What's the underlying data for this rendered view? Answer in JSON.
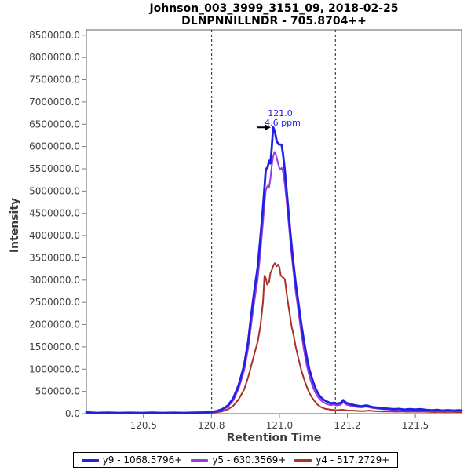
{
  "header": {
    "title_line1": "Johnson_003_3999_3151_09, 2018-02-25",
    "title_line2": "DLNPNNILLNDR - 705.8704++"
  },
  "axes": {
    "x": {
      "title": "Retention Time"
    },
    "y": {
      "title": "Intensity"
    }
  },
  "chart_data": {
    "type": "line",
    "title": "Johnson_003_3999_3151_09, 2018-02-25 / DLNPNNILLNDR - 705.8704++",
    "xlabel": "Retention Time",
    "ylabel": "Intensity",
    "xlim": [
      120.29,
      121.67
    ],
    "ylim": [
      0,
      8620000
    ],
    "grid": false,
    "legend_position": "bottom-center",
    "x_ticks": [
      {
        "v": 120.5,
        "label": "120.5"
      },
      {
        "v": 120.75,
        "label": "120.8"
      },
      {
        "v": 121.0,
        "label": "121.0"
      },
      {
        "v": 121.25,
        "label": "121.2"
      },
      {
        "v": 121.5,
        "label": "121.5"
      }
    ],
    "y_ticks": [
      {
        "v": 0,
        "label": "0.0"
      },
      {
        "v": 500000,
        "label": "500000.0"
      },
      {
        "v": 1000000,
        "label": "1000000.0"
      },
      {
        "v": 1500000,
        "label": "1500000.0"
      },
      {
        "v": 2000000,
        "label": "2000000.0"
      },
      {
        "v": 2500000,
        "label": "2500000.0"
      },
      {
        "v": 3000000,
        "label": "3000000.0"
      },
      {
        "v": 3500000,
        "label": "3500000.0"
      },
      {
        "v": 4000000,
        "label": "4000000.0"
      },
      {
        "v": 4500000,
        "label": "4500000.0"
      },
      {
        "v": 5000000,
        "label": "5000000.0"
      },
      {
        "v": 5500000,
        "label": "5500000.0"
      },
      {
        "v": 6000000,
        "label": "6000000.0"
      },
      {
        "v": 6500000,
        "label": "6500000.0"
      },
      {
        "v": 7000000,
        "label": "7000000.0"
      },
      {
        "v": 7500000,
        "label": "7500000.0"
      },
      {
        "v": 8000000,
        "label": "8000000.0"
      },
      {
        "v": 8500000,
        "label": "8500000.0"
      }
    ],
    "boundaries": [
      120.751,
      121.206
    ],
    "annotation": {
      "rt_label": "121.0",
      "ppm_label": "4.6 ppm",
      "rt": 120.977,
      "intensity": 6430000,
      "color": "#2222E0"
    },
    "series": [
      {
        "id": "y9",
        "name": "y9 - 1068.5796+",
        "color": "#2121E3",
        "width": 2.8,
        "points": [
          [
            120.29,
            30000
          ],
          [
            120.33,
            18000
          ],
          [
            120.37,
            24000
          ],
          [
            120.41,
            17000
          ],
          [
            120.45,
            22000
          ],
          [
            120.49,
            18000
          ],
          [
            120.53,
            23000
          ],
          [
            120.57,
            17000
          ],
          [
            120.61,
            21000
          ],
          [
            120.65,
            18000
          ],
          [
            120.69,
            24000
          ],
          [
            120.72,
            27000
          ],
          [
            120.75,
            38000
          ],
          [
            120.77,
            60000
          ],
          [
            120.79,
            100000
          ],
          [
            120.81,
            180000
          ],
          [
            120.83,
            340000
          ],
          [
            120.85,
            640000
          ],
          [
            120.87,
            1080000
          ],
          [
            120.885,
            1620000
          ],
          [
            120.9,
            2400000
          ],
          [
            120.91,
            2870000
          ],
          [
            120.92,
            3280000
          ],
          [
            120.93,
            3950000
          ],
          [
            120.94,
            4650000
          ],
          [
            120.945,
            5080000
          ],
          [
            120.95,
            5480000
          ],
          [
            120.957,
            5540000
          ],
          [
            120.962,
            5680000
          ],
          [
            120.967,
            5620000
          ],
          [
            120.972,
            5980000
          ],
          [
            120.977,
            6430000
          ],
          [
            120.983,
            6350000
          ],
          [
            120.99,
            6120000
          ],
          [
            120.997,
            6050000
          ],
          [
            121.008,
            6040000
          ],
          [
            121.013,
            5850000
          ],
          [
            121.02,
            5450000
          ],
          [
            121.03,
            4780000
          ],
          [
            121.04,
            4080000
          ],
          [
            121.05,
            3470000
          ],
          [
            121.06,
            2930000
          ],
          [
            121.07,
            2480000
          ],
          [
            121.08,
            2040000
          ],
          [
            121.09,
            1640000
          ],
          [
            121.1,
            1290000
          ],
          [
            121.11,
            1000000
          ],
          [
            121.12,
            790000
          ],
          [
            121.13,
            610000
          ],
          [
            121.14,
            480000
          ],
          [
            121.15,
            385000
          ],
          [
            121.16,
            325000
          ],
          [
            121.17,
            285000
          ],
          [
            121.18,
            255000
          ],
          [
            121.19,
            235000
          ],
          [
            121.2,
            245000
          ],
          [
            121.21,
            225000
          ],
          [
            121.225,
            240000
          ],
          [
            121.235,
            305000
          ],
          [
            121.245,
            245000
          ],
          [
            121.26,
            215000
          ],
          [
            121.28,
            185000
          ],
          [
            121.3,
            165000
          ],
          [
            121.32,
            185000
          ],
          [
            121.34,
            150000
          ],
          [
            121.36,
            135000
          ],
          [
            121.38,
            120000
          ],
          [
            121.4,
            112000
          ],
          [
            121.42,
            100000
          ],
          [
            121.44,
            108000
          ],
          [
            121.46,
            92000
          ],
          [
            121.48,
            102000
          ],
          [
            121.5,
            94000
          ],
          [
            121.52,
            100000
          ],
          [
            121.54,
            86000
          ],
          [
            121.56,
            76000
          ],
          [
            121.58,
            86000
          ],
          [
            121.6,
            70000
          ],
          [
            121.62,
            80000
          ],
          [
            121.64,
            70000
          ],
          [
            121.66,
            76000
          ],
          [
            121.67,
            72000
          ]
        ]
      },
      {
        "id": "y5",
        "name": "y5 - 630.3569+",
        "color": "#9B3BD9",
        "width": 2,
        "points": [
          [
            120.29,
            22000
          ],
          [
            120.34,
            14000
          ],
          [
            120.39,
            18000
          ],
          [
            120.44,
            13000
          ],
          [
            120.49,
            16000
          ],
          [
            120.54,
            14000
          ],
          [
            120.59,
            17000
          ],
          [
            120.64,
            13000
          ],
          [
            120.69,
            18000
          ],
          [
            120.72,
            22000
          ],
          [
            120.75,
            30000
          ],
          [
            120.77,
            48000
          ],
          [
            120.79,
            82000
          ],
          [
            120.81,
            150000
          ],
          [
            120.83,
            295000
          ],
          [
            120.85,
            560000
          ],
          [
            120.87,
            960000
          ],
          [
            120.885,
            1460000
          ],
          [
            120.9,
            2180000
          ],
          [
            120.91,
            2620000
          ],
          [
            120.92,
            3020000
          ],
          [
            120.93,
            3620000
          ],
          [
            120.94,
            4320000
          ],
          [
            120.945,
            4720000
          ],
          [
            120.95,
            5020000
          ],
          [
            120.957,
            5120000
          ],
          [
            120.962,
            5080000
          ],
          [
            120.967,
            5280000
          ],
          [
            120.972,
            5560000
          ],
          [
            120.977,
            5780000
          ],
          [
            120.982,
            5880000
          ],
          [
            120.988,
            5800000
          ],
          [
            120.995,
            5620000
          ],
          [
            121.002,
            5480000
          ],
          [
            121.008,
            5520000
          ],
          [
            121.013,
            5440000
          ],
          [
            121.02,
            5150000
          ],
          [
            121.03,
            4550000
          ],
          [
            121.04,
            3880000
          ],
          [
            121.05,
            3280000
          ],
          [
            121.06,
            2740000
          ],
          [
            121.07,
            2290000
          ],
          [
            121.08,
            1840000
          ],
          [
            121.09,
            1440000
          ],
          [
            121.1,
            1100000
          ],
          [
            121.11,
            850000
          ],
          [
            121.12,
            650000
          ],
          [
            121.13,
            500000
          ],
          [
            121.14,
            390000
          ],
          [
            121.15,
            315000
          ],
          [
            121.16,
            262000
          ],
          [
            121.17,
            228000
          ],
          [
            121.18,
            205000
          ],
          [
            121.19,
            192000
          ],
          [
            121.2,
            205000
          ],
          [
            121.21,
            185000
          ],
          [
            121.225,
            198000
          ],
          [
            121.235,
            255000
          ],
          [
            121.245,
            205000
          ],
          [
            121.26,
            180000
          ],
          [
            121.28,
            155000
          ],
          [
            121.3,
            140000
          ],
          [
            121.32,
            158000
          ],
          [
            121.34,
            128000
          ],
          [
            121.36,
            112000
          ],
          [
            121.38,
            100000
          ],
          [
            121.4,
            95000
          ],
          [
            121.42,
            85000
          ],
          [
            121.44,
            92000
          ],
          [
            121.46,
            78000
          ],
          [
            121.48,
            86000
          ],
          [
            121.5,
            80000
          ],
          [
            121.52,
            85000
          ],
          [
            121.54,
            72000
          ],
          [
            121.56,
            64000
          ],
          [
            121.58,
            72000
          ],
          [
            121.6,
            58000
          ],
          [
            121.62,
            66000
          ],
          [
            121.64,
            58000
          ],
          [
            121.66,
            62000
          ],
          [
            121.67,
            60000
          ]
        ]
      },
      {
        "id": "y4",
        "name": "y4 - 517.2729+",
        "color": "#AC2F2B",
        "width": 2,
        "points": [
          [
            120.29,
            15000
          ],
          [
            120.35,
            10000
          ],
          [
            120.41,
            13000
          ],
          [
            120.47,
            9000
          ],
          [
            120.53,
            12000
          ],
          [
            120.59,
            10000
          ],
          [
            120.65,
            13000
          ],
          [
            120.7,
            15000
          ],
          [
            120.74,
            20000
          ],
          [
            120.77,
            32000
          ],
          [
            120.79,
            52000
          ],
          [
            120.81,
            95000
          ],
          [
            120.83,
            175000
          ],
          [
            120.85,
            320000
          ],
          [
            120.87,
            540000
          ],
          [
            120.885,
            820000
          ],
          [
            120.9,
            1160000
          ],
          [
            120.91,
            1400000
          ],
          [
            120.92,
            1610000
          ],
          [
            120.93,
            1960000
          ],
          [
            120.94,
            2520000
          ],
          [
            120.945,
            3100000
          ],
          [
            120.95,
            3040000
          ],
          [
            120.955,
            2900000
          ],
          [
            120.962,
            2960000
          ],
          [
            120.967,
            3160000
          ],
          [
            120.972,
            3220000
          ],
          [
            120.977,
            3320000
          ],
          [
            120.983,
            3380000
          ],
          [
            120.99,
            3310000
          ],
          [
            120.995,
            3350000
          ],
          [
            121.0,
            3290000
          ],
          [
            121.005,
            3100000
          ],
          [
            121.013,
            3060000
          ],
          [
            121.02,
            3020000
          ],
          [
            121.027,
            2680000
          ],
          [
            121.035,
            2350000
          ],
          [
            121.045,
            1960000
          ],
          [
            121.052,
            1770000
          ],
          [
            121.06,
            1500000
          ],
          [
            121.07,
            1240000
          ],
          [
            121.08,
            990000
          ],
          [
            121.09,
            790000
          ],
          [
            121.1,
            610000
          ],
          [
            121.11,
            470000
          ],
          [
            121.12,
            360000
          ],
          [
            121.13,
            275000
          ],
          [
            121.14,
            205000
          ],
          [
            121.15,
            158000
          ],
          [
            121.16,
            128000
          ],
          [
            121.17,
            108000
          ],
          [
            121.18,
            98000
          ],
          [
            121.19,
            88000
          ],
          [
            121.21,
            78000
          ],
          [
            121.23,
            88000
          ],
          [
            121.25,
            73000
          ],
          [
            121.27,
            68000
          ],
          [
            121.29,
            62000
          ],
          [
            121.31,
            58000
          ],
          [
            121.33,
            68000
          ],
          [
            121.35,
            58000
          ],
          [
            121.37,
            52000
          ],
          [
            121.39,
            48000
          ],
          [
            121.41,
            48000
          ],
          [
            121.43,
            44000
          ],
          [
            121.45,
            48000
          ],
          [
            121.47,
            42000
          ],
          [
            121.49,
            46000
          ],
          [
            121.51,
            43000
          ],
          [
            121.53,
            46000
          ],
          [
            121.55,
            40000
          ],
          [
            121.57,
            36000
          ],
          [
            121.59,
            40000
          ],
          [
            121.61,
            35000
          ],
          [
            121.63,
            38000
          ],
          [
            121.65,
            35000
          ],
          [
            121.67,
            36000
          ]
        ]
      }
    ]
  }
}
